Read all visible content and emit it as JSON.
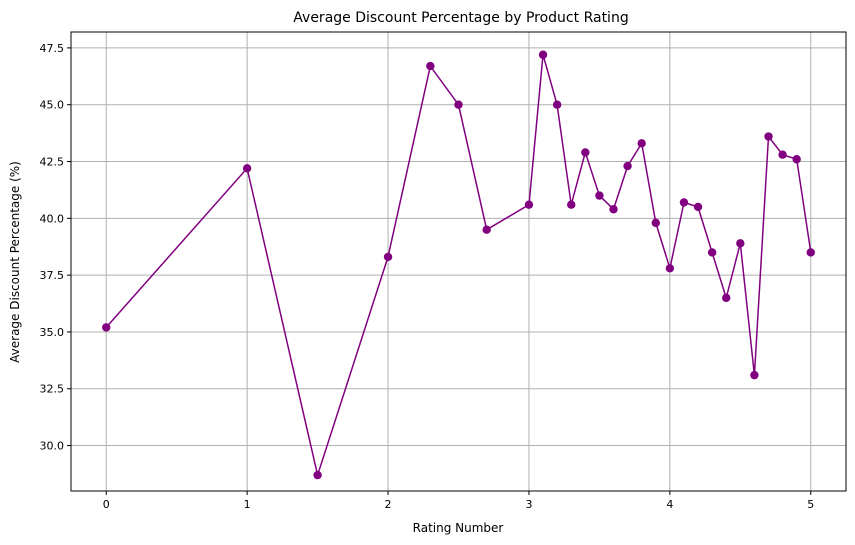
{
  "chart_data": {
    "type": "line",
    "title": "Average Discount Percentage by Product Rating",
    "xlabel": "Rating Number",
    "ylabel": "Average Discount Percentage (%)",
    "xlim": [
      -0.25,
      5.25
    ],
    "ylim": [
      28.0,
      48.2
    ],
    "x_ticks": [
      0,
      1,
      2,
      3,
      4,
      5
    ],
    "y_ticks": [
      30.0,
      32.5,
      35.0,
      37.5,
      40.0,
      42.5,
      45.0,
      47.5
    ],
    "x_tick_labels": [
      "0",
      "1",
      "2",
      "3",
      "4",
      "5"
    ],
    "y_tick_labels": [
      "30.0",
      "32.5",
      "35.0",
      "37.5",
      "40.0",
      "42.5",
      "45.0",
      "47.5"
    ],
    "grid": true,
    "color": "#800080",
    "marker": "circle",
    "series": [
      {
        "x": [
          0,
          1,
          1.5,
          2,
          2.3,
          2.5,
          2.7,
          3,
          3.1,
          3.2,
          3.3,
          3.4,
          3.5,
          3.6,
          3.7,
          3.8,
          3.9,
          4,
          4.1,
          4.2,
          4.3,
          4.4,
          4.5,
          4.6,
          4.7,
          4.8,
          4.9,
          5
        ],
        "y": [
          35.2,
          42.2,
          28.7,
          38.3,
          46.7,
          45.0,
          39.5,
          40.6,
          47.2,
          45.0,
          40.6,
          42.9,
          41.0,
          40.4,
          42.3,
          43.3,
          39.8,
          37.8,
          40.7,
          40.5,
          38.5,
          36.5,
          38.9,
          33.1,
          43.6,
          42.8,
          42.6,
          38.5
        ]
      }
    ]
  }
}
